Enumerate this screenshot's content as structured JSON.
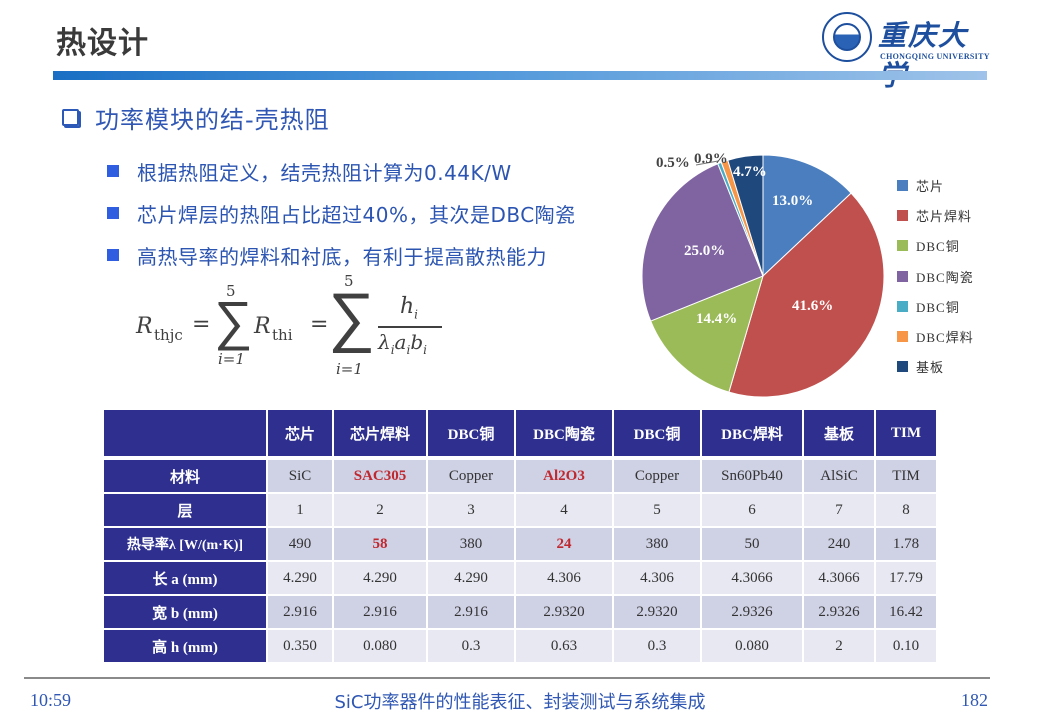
{
  "header": {
    "title": "热设计",
    "logo": {
      "name_cn": "重庆大学",
      "name_en": "CHONGQING UNIVERSITY"
    }
  },
  "section": {
    "heading": "功率模块的结-壳热阻"
  },
  "bullets": [
    {
      "text": "根据热阻定义，结壳热阻计算为0.44K/W"
    },
    {
      "text": "芯片焊层的热阻占比超过40%，其次是DBC陶瓷"
    },
    {
      "text": "高热导率的焊料和衬底，有利于提高散热能力"
    }
  ],
  "formula": {
    "lhs": "R",
    "lhs_sub": "thjc",
    "sum_upper": "5",
    "sum_lower": "i=1",
    "term": "R",
    "term_sub": "thi",
    "numerator": "h",
    "denominator": "λaibi",
    "eq": "="
  },
  "chart_data": {
    "type": "pie",
    "title": "",
    "categories": [
      "芯片",
      "芯片焊料",
      "DBC铜",
      "DBC陶瓷",
      "DBC铜",
      "DBC焊料",
      "基板"
    ],
    "values": [
      13.0,
      41.6,
      14.4,
      25.0,
      0.5,
      0.9,
      4.7
    ],
    "labels": [
      "13.0%",
      "41.6%",
      "14.4%",
      "25.0%",
      "0.5%",
      "0.9%",
      "4.7%"
    ],
    "colors": [
      "#4a7ebf",
      "#c0504d",
      "#9bbb59",
      "#8064a2",
      "#4bacc6",
      "#f79646",
      "#1f497d"
    ],
    "start_angle": "12 o'clock",
    "direction": "clockwise",
    "legend_position": "right"
  },
  "legend": [
    {
      "label": "芯片",
      "color": "#4a7ebf"
    },
    {
      "label": "芯片焊料",
      "color": "#c0504d"
    },
    {
      "label": "DBC铜",
      "color": "#9bbb59"
    },
    {
      "label": "DBC陶瓷",
      "color": "#8064a2"
    },
    {
      "label": "DBC铜",
      "color": "#4bacc6"
    },
    {
      "label": "DBC焊料",
      "color": "#f79646"
    },
    {
      "label": "基板",
      "color": "#1f497d"
    }
  ],
  "table": {
    "columns": [
      "",
      "芯片",
      "芯片焊料",
      "DBC铜",
      "DBC陶瓷",
      "DBC铜",
      "DBC焊料",
      "基板",
      "TIM"
    ],
    "rows": [
      {
        "label": "材料",
        "cells": [
          "SiC",
          "SAC305",
          "Copper",
          "Al2O3",
          "Copper",
          "Sn60Pb40",
          "AlSiC",
          "TIM"
        ]
      },
      {
        "label": "层",
        "cells": [
          "1",
          "2",
          "3",
          "4",
          "5",
          "6",
          "7",
          "8"
        ]
      },
      {
        "label": "热导率λ [W/(m·K)]",
        "cells": [
          "490",
          "58",
          "380",
          "24",
          "380",
          "50",
          "240",
          "1.78"
        ]
      },
      {
        "label": "长 a (mm)",
        "cells": [
          "4.290",
          "4.290",
          "4.290",
          "4.306",
          "4.306",
          "4.3066",
          "4.3066",
          "17.79"
        ]
      },
      {
        "label": "宽 b (mm)",
        "cells": [
          "2.916",
          "2.916",
          "2.916",
          "2.9320",
          "2.9320",
          "2.9326",
          "2.9326",
          "16.42"
        ]
      },
      {
        "label": "高 h (mm)",
        "cells": [
          "0.350",
          "0.080",
          "0.3",
          "0.63",
          "0.3",
          "0.080",
          "2",
          "0.10"
        ]
      }
    ],
    "highlight_color": "#c0282f"
  },
  "footer": {
    "time": "10:59",
    "title": "SiC功率器件的性能表征、封装测试与系统集成",
    "page": "182"
  }
}
